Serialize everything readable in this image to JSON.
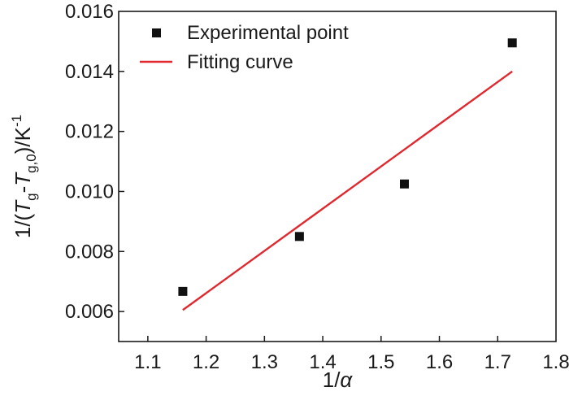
{
  "chart_data": {
    "type": "scatter",
    "xlim": [
      1.05,
      1.8
    ],
    "ylim": [
      0.005,
      0.016
    ],
    "x_ticks": [
      1.1,
      1.2,
      1.3,
      1.4,
      1.5,
      1.6,
      1.7,
      1.8
    ],
    "y_ticks": [
      0.006,
      0.008,
      0.01,
      0.012,
      0.014,
      0.016
    ],
    "x_tick_labels": [
      "1.1",
      "1.2",
      "1.3",
      "1.4",
      "1.5",
      "1.6",
      "1.7",
      "1.8"
    ],
    "y_tick_labels": [
      "0.006",
      "0.008",
      "0.010",
      "0.012",
      "0.014",
      "0.016"
    ],
    "xlabel": {
      "prefix": "1/",
      "symbol": "α"
    },
    "ylabel": {
      "p1": "1/(",
      "T1": "T",
      "sub1": "g",
      "dash": "-",
      "T2": "T",
      "sub2": "g,0",
      "p2": ")/K",
      "sup": "-1"
    },
    "grid": false,
    "legend_position": "top-left",
    "series": [
      {
        "name": "Experimental point",
        "kind": "scatter",
        "marker": "square",
        "color": "#111111",
        "x": [
          1.16,
          1.36,
          1.54,
          1.725
        ],
        "y": [
          0.00667,
          0.0085,
          0.01025,
          0.01495
        ]
      },
      {
        "name": "Fitting curve",
        "kind": "line",
        "color": "#e0282e",
        "x": [
          1.16,
          1.725
        ],
        "y": [
          0.00605,
          0.014
        ]
      }
    ]
  }
}
